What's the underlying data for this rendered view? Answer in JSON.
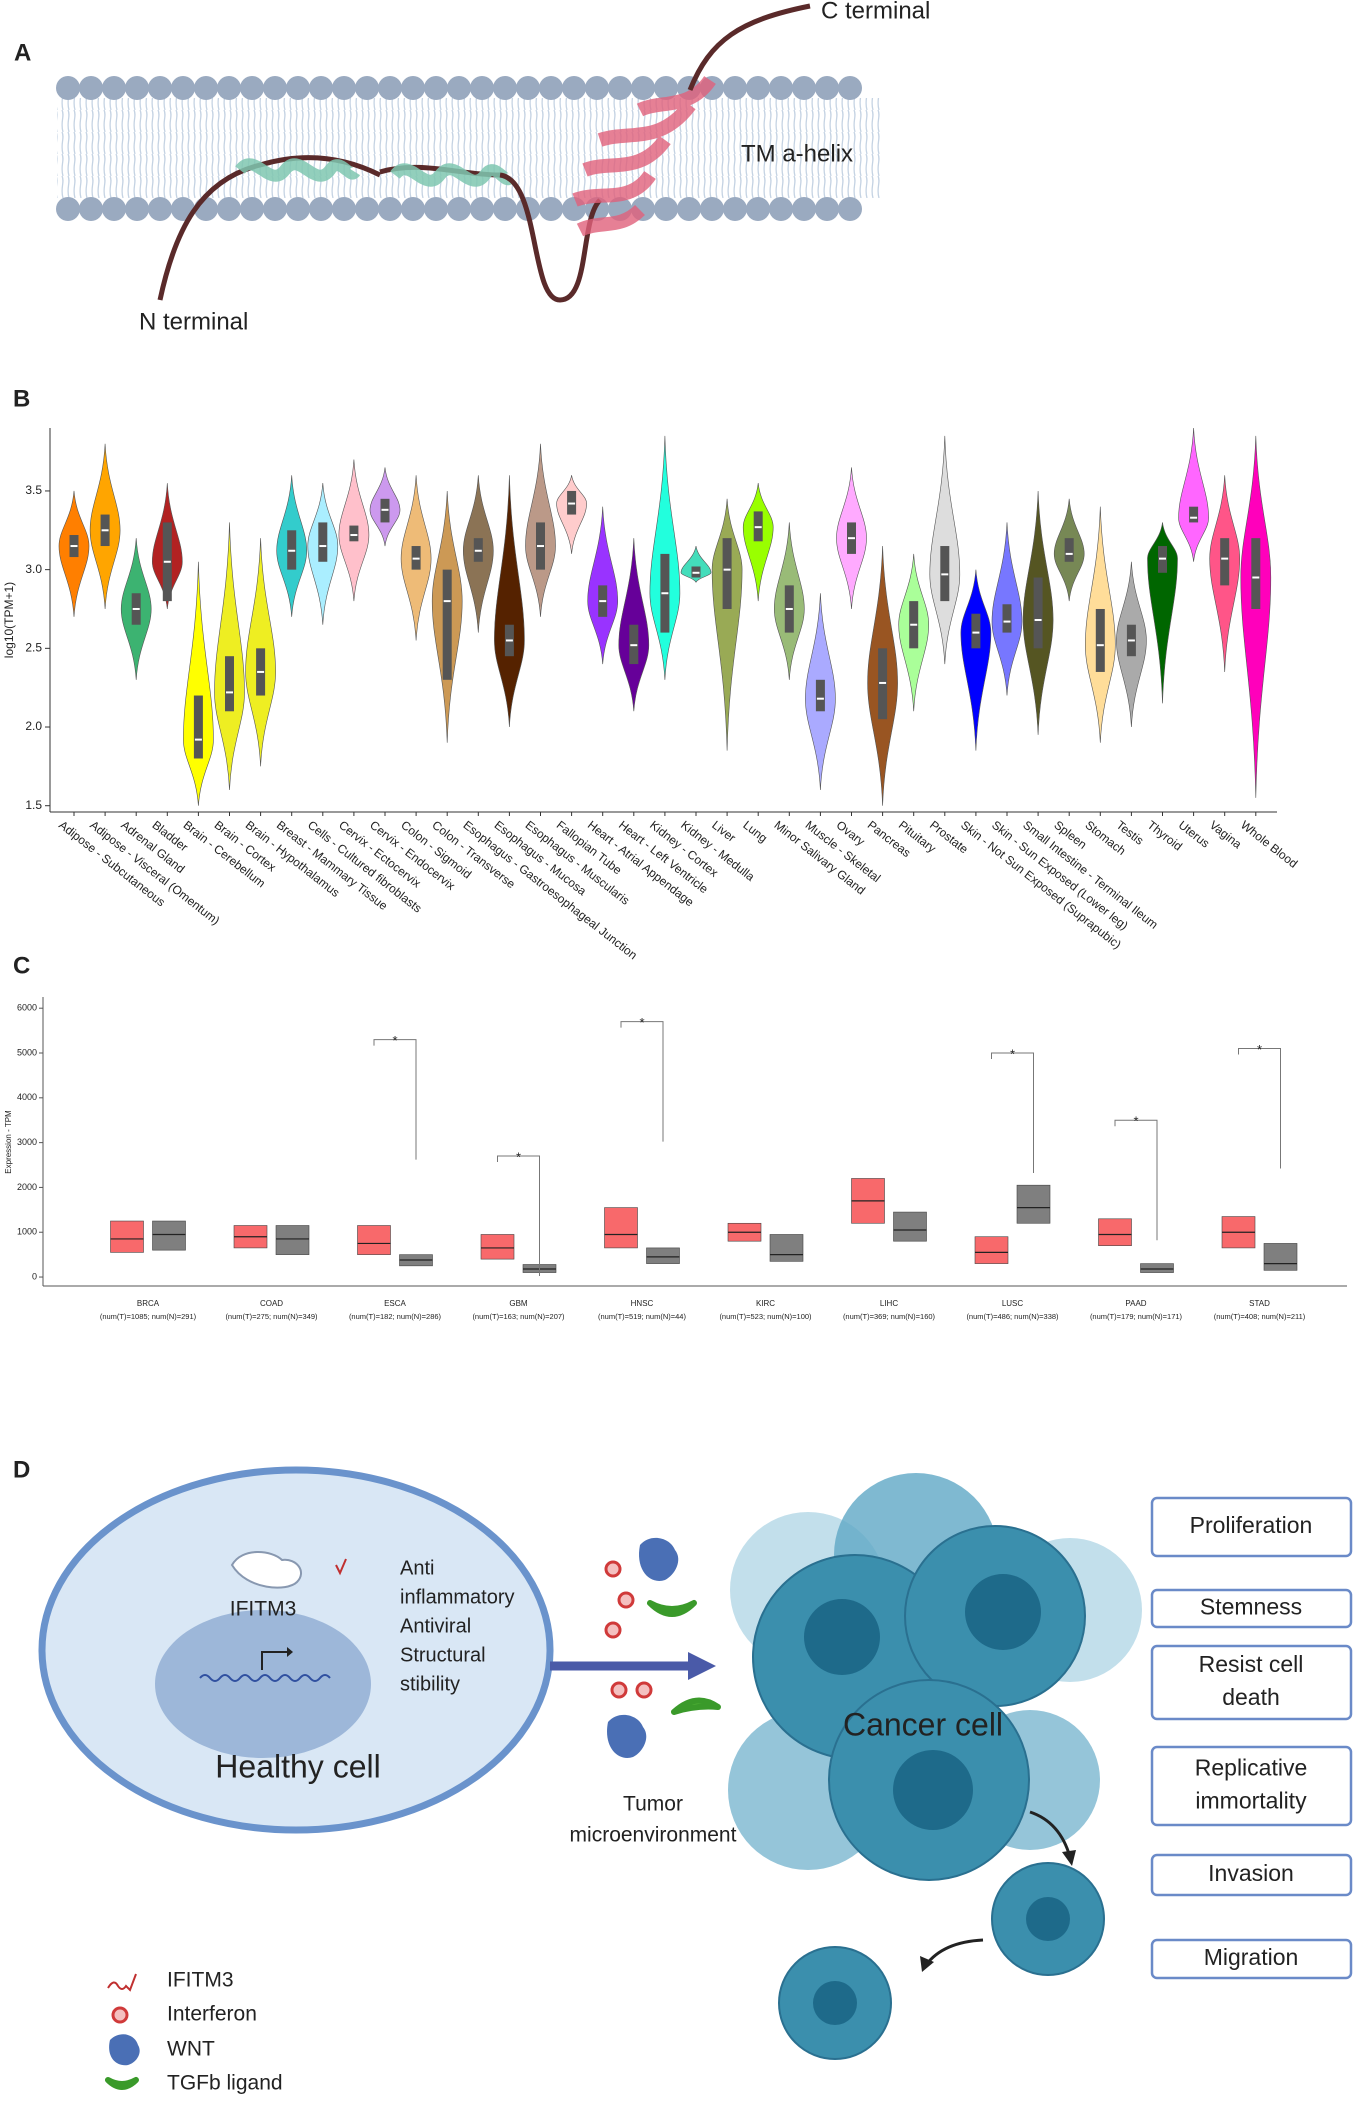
{
  "panel_a": {
    "label": "A",
    "c_terminal": "C terminal",
    "helix": "TM a-helix",
    "n_terminal": "N terminal"
  },
  "chart_data": [
    {
      "type": "violin",
      "label": "B",
      "y_label": "log10(TPM+1)",
      "categories": [
        "Adipose - Subcutaneous",
        "Adipose - Visceral (Omentum)",
        "Adrenal Gland",
        "Bladder",
        "Brain - Cerebellum",
        "Brain - Cortex",
        "Brain - Hypothalamus",
        "Breast - Mammary Tissue",
        "Cells - Cultured fibroblasts",
        "Cervix - Ectocervix",
        "Cervix - Endocervix",
        "Colon - Sigmoid",
        "Colon - Transverse",
        "Esophagus - Gastroesophageal Junction",
        "Esophagus - Mucosa",
        "Esophagus - Muscularis",
        "Fallopian Tube",
        "Heart - Atrial Appendage",
        "Heart - Left Ventricle",
        "Kidney - Cortex",
        "Kidney - Medulla",
        "Liver",
        "Lung",
        "Minor Salivary Gland",
        "Muscle - Skeletal",
        "Ovary",
        "Pancreas",
        "Pituitary",
        "Prostate",
        "Skin - Not Sun Exposed (Suprapubic)",
        "Skin - Sun Exposed (Lower leg)",
        "Small Intestine - Terminal Ileum",
        "Spleen",
        "Stomach",
        "Testis",
        "Thyroid",
        "Uterus",
        "Vagina",
        "Whole Blood"
      ],
      "colors": [
        "#ff7f00",
        "#ffa500",
        "#3cb371",
        "#b22222",
        "#ffff00",
        "#eeee22",
        "#eeee22",
        "#33cccc",
        "#aaeeff",
        "#ffc0cb",
        "#cc99ee",
        "#eebb77",
        "#cc9955",
        "#8b7355",
        "#552200",
        "#bb9988",
        "#ffcccc",
        "#9933ff",
        "#660099",
        "#22ffdd",
        "#44ddbb",
        "#99aa55",
        "#99ff00",
        "#99bb77",
        "#aaaaff",
        "#ffaaff",
        "#995522",
        "#aaff99",
        "#dddddd",
        "#0000ff",
        "#7777ff",
        "#555522",
        "#778855",
        "#ffdd99",
        "#aaaaaa",
        "#006600",
        "#ff66ff",
        "#ff5588",
        "#ff00bb"
      ],
      "min": [
        2.7,
        2.75,
        2.3,
        2.75,
        1.5,
        1.6,
        1.75,
        2.7,
        2.65,
        2.8,
        3.15,
        2.55,
        1.9,
        2.6,
        2.0,
        2.7,
        3.1,
        2.4,
        2.1,
        2.3,
        2.92,
        1.85,
        2.8,
        2.3,
        1.6,
        2.75,
        1.5,
        2.1,
        2.4,
        1.85,
        2.2,
        1.95,
        2.8,
        1.9,
        2.0,
        2.15,
        3.05,
        2.35,
        1.55
      ],
      "q1": [
        3.08,
        3.15,
        2.65,
        2.8,
        1.8,
        2.1,
        2.2,
        3.0,
        3.05,
        3.18,
        3.3,
        3.0,
        2.3,
        3.05,
        2.45,
        3.0,
        3.35,
        2.7,
        2.4,
        2.6,
        2.95,
        2.75,
        3.18,
        2.6,
        2.1,
        3.1,
        2.05,
        2.5,
        2.8,
        2.5,
        2.6,
        2.5,
        3.05,
        2.35,
        2.45,
        2.98,
        3.3,
        2.9,
        2.75
      ],
      "median": [
        3.15,
        3.25,
        2.75,
        3.05,
        1.92,
        2.22,
        2.35,
        3.12,
        3.15,
        3.22,
        3.38,
        3.07,
        2.8,
        3.12,
        2.55,
        3.15,
        3.42,
        2.8,
        2.52,
        2.85,
        2.98,
        3.0,
        3.27,
        2.75,
        2.18,
        3.2,
        2.28,
        2.65,
        2.97,
        2.6,
        2.67,
        2.68,
        3.1,
        2.52,
        2.55,
        3.07,
        3.33,
        3.07,
        2.95
      ],
      "q3": [
        3.22,
        3.35,
        2.85,
        3.3,
        2.2,
        2.45,
        2.5,
        3.25,
        3.3,
        3.28,
        3.45,
        3.15,
        3.0,
        3.2,
        2.65,
        3.3,
        3.5,
        2.9,
        2.65,
        3.1,
        3.02,
        3.2,
        3.37,
        2.9,
        2.3,
        3.3,
        2.5,
        2.8,
        3.15,
        2.72,
        2.78,
        2.95,
        3.2,
        2.75,
        2.65,
        3.15,
        3.4,
        3.2,
        3.2
      ],
      "max": [
        3.5,
        3.8,
        3.2,
        3.55,
        3.05,
        3.3,
        3.2,
        3.6,
        3.55,
        3.7,
        3.65,
        3.6,
        3.5,
        3.6,
        3.6,
        3.8,
        3.6,
        3.4,
        3.2,
        3.85,
        3.15,
        3.45,
        3.55,
        3.3,
        2.85,
        3.65,
        3.15,
        3.1,
        3.85,
        3.0,
        3.3,
        3.5,
        3.45,
        3.4,
        3.05,
        3.3,
        3.9,
        3.6,
        3.85
      ],
      "ylim": [
        1.46,
        3.9
      ],
      "yticks": [
        1.5,
        {
          "value": 2,
          "label": "2.0"
        },
        2.5,
        {
          "value": 3,
          "label": "3.0"
        },
        3.5
      ]
    },
    {
      "type": "box",
      "label": "C",
      "y_label": "Expression - TPM",
      "categories": [
        "BRCA",
        "COAD",
        "ESCA",
        "GBM",
        "HNSC",
        "KIRC",
        "LIHC",
        "LUSC",
        "PAAD",
        "STAD"
      ],
      "sample_sizes": [
        "(num(T)=1085; num(N)=291)",
        "(num(T)=275; num(N)=349)",
        "(num(T)=182; num(N)=286)",
        "(num(T)=163; num(N)=207)",
        "(num(T)=519; num(N)=44)",
        "(num(T)=523; num(N)=100)",
        "(num(T)=369; num(N)=160)",
        "(num(T)=486; num(N)=338)",
        "(num(T)=179; num(N)=171)",
        "(num(T)=408; num(N)=211)"
      ],
      "series": [
        {
          "color": "#f8696b",
          "q1": [
            550,
            650,
            500,
            400,
            650,
            800,
            1200,
            300,
            700,
            650
          ],
          "median": [
            850,
            900,
            750,
            650,
            950,
            1000,
            1700,
            550,
            950,
            1000
          ],
          "q3": [
            1250,
            1150,
            1150,
            950,
            1550,
            1200,
            2200,
            900,
            1300,
            1350
          ]
        },
        {
          "color": "#7f7f7f",
          "q1": [
            600,
            500,
            250,
            100,
            300,
            350,
            800,
            1200,
            100,
            150
          ],
          "median": [
            950,
            850,
            380,
            180,
            450,
            500,
            1050,
            1550,
            180,
            300
          ],
          "q3": [
            1250,
            1150,
            500,
            280,
            650,
            950,
            1450,
            2050,
            300,
            750
          ]
        }
      ],
      "significance": [
        null,
        null,
        {
          "label": "*",
          "y": 5300
        },
        {
          "label": "*",
          "y": 2700
        },
        {
          "label": "*",
          "y": 5700
        },
        null,
        null,
        {
          "label": "*",
          "y": 5000
        },
        {
          "label": "*",
          "y": 3500
        },
        {
          "label": "*",
          "y": 5100
        }
      ],
      "ylim": [
        -200,
        6250
      ],
      "yticks": [
        0,
        1000,
        2000,
        3000,
        4000,
        5000,
        6000
      ]
    }
  ],
  "panel_d": {
    "label": "D",
    "ifitm3": "IFITM3",
    "functions": [
      "Anti",
      "inflammatory",
      "Antiviral",
      "Structural",
      "stibility"
    ],
    "healthy": "Healthy cell",
    "tme": [
      "Tumor",
      "microenvironment"
    ],
    "cancer": "Cancer cell",
    "hallmarks": [
      [
        "Proliferation"
      ],
      [
        "Stemness"
      ],
      [
        "Resist cell",
        "death"
      ],
      [
        "Replicative",
        "immortality"
      ],
      [
        "Invasion"
      ],
      [
        "Migration"
      ]
    ],
    "legend": [
      "IFITM3",
      "Interferon",
      "WNT",
      "TGFb ligand"
    ]
  }
}
